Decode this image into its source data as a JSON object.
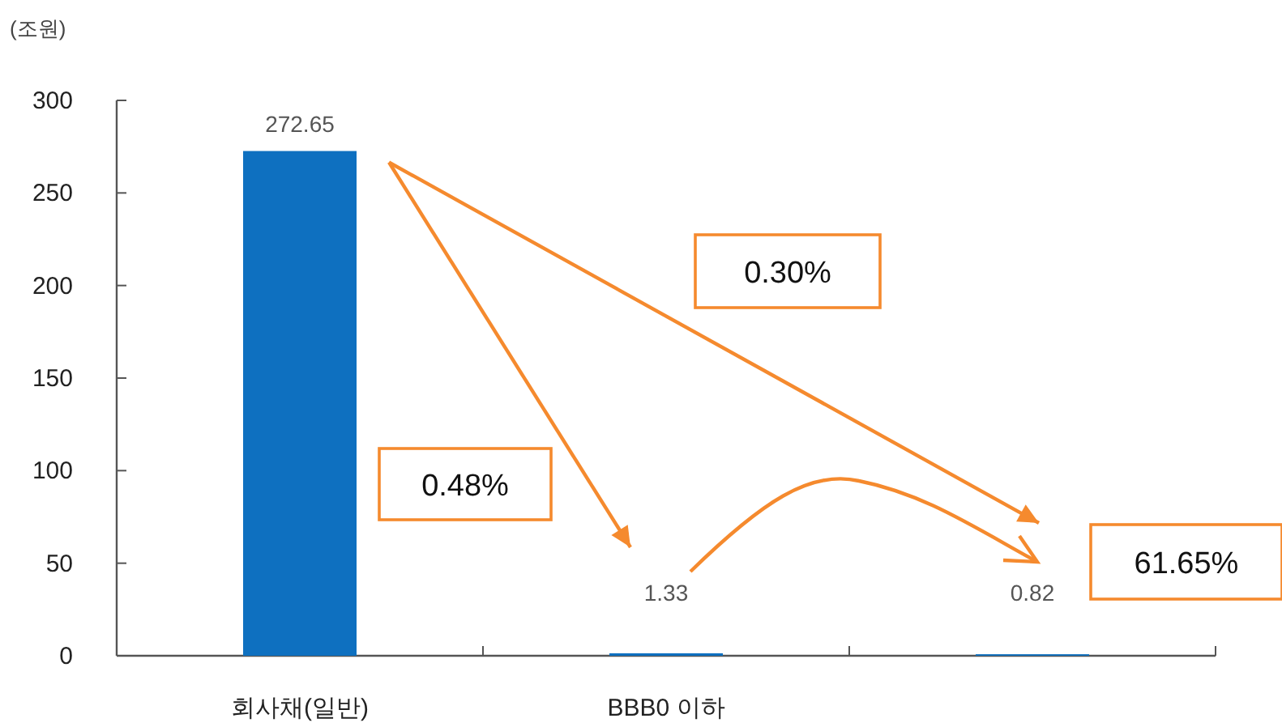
{
  "chart_data": {
    "type": "bar",
    "ylabel": "(조원)",
    "categories": [
      "회사채(일반)",
      "BBB0 이하",
      null
    ],
    "values": [
      272.65,
      1.33,
      0.82
    ],
    "color": "#0e70c0",
    "ylim": [
      0,
      300
    ],
    "yticks": [
      0,
      50,
      100,
      150,
      200,
      250,
      300
    ],
    "data_labels": true,
    "grid": false,
    "annotations": [
      "0.48%",
      "0.30%",
      "61.65%"
    ]
  }
}
